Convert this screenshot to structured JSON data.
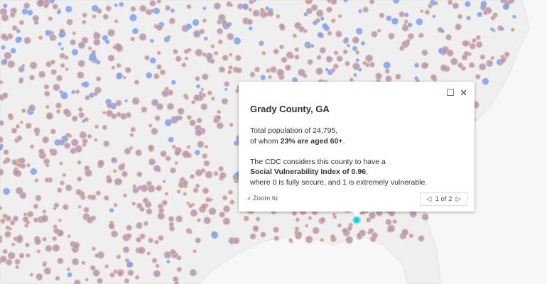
{
  "popup": {
    "title": "Grady County, GA",
    "population": [
      "Total population of 24,795,",
      "of whom ",
      "23% are aged 60+",
      "."
    ],
    "vulnerability": [
      "The CDC considers this county to have a",
      "Social Vulnerability Index of 0.96",
      ",",
      "where 0 is fully secure, and 1 is extremely vulnerable."
    ],
    "zoom": "Zoom to",
    "pager": "1 of 2"
  }
}
